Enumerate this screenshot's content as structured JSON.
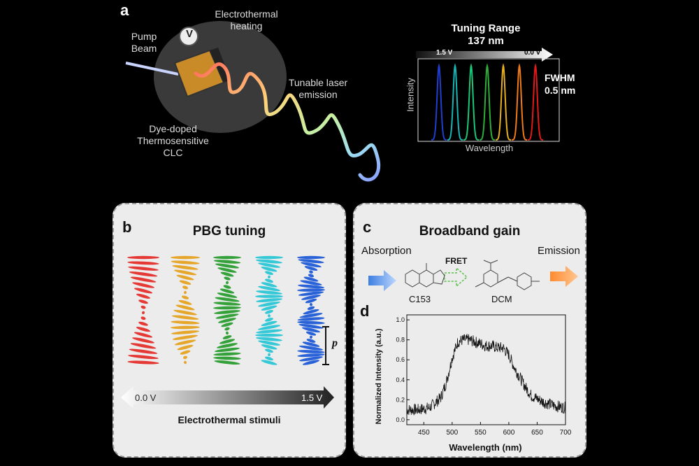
{
  "panel_a": {
    "label": "a",
    "pump_beam": [
      "Pump",
      "Beam"
    ],
    "heating": [
      "Electrothermal",
      "heating"
    ],
    "voltage_symbol": "V",
    "emission": [
      "Tunable laser",
      "emission"
    ],
    "clc": [
      "Dye-doped",
      "Thermosensitive",
      "CLC"
    ]
  },
  "spectrum": {
    "title": "Tuning Range",
    "range": "137 nm",
    "arrow_left": "1.5 V",
    "arrow_right": "0.0 V",
    "fwhm_label": "FWHM",
    "fwhm_value": "0.5 nm",
    "ylabel": "Intensity",
    "xlabel": "Wavelength",
    "peak_colors": [
      "#1f3fd0",
      "#17b6b6",
      "#19c979",
      "#2fae3a",
      "#e8b020",
      "#f07a1a",
      "#e21a1a"
    ]
  },
  "panel_b": {
    "label": "b",
    "title": "PBG tuning",
    "pitch_symbol": "p",
    "arrow_left": "0.0 V",
    "arrow_right": "1.5 V",
    "caption": "Electrothermal stimuli",
    "helix_colors": [
      "#e53935",
      "#e6a62a",
      "#34a13a",
      "#35c8d6",
      "#2a62d8"
    ]
  },
  "panel_c": {
    "label": "c",
    "title": "Broadband gain",
    "absorption": "Absorption",
    "emission": "Emission",
    "fret": "FRET",
    "donor": "C153",
    "acceptor": "DCM"
  },
  "panel_d": {
    "label": "d"
  },
  "chart_data": {
    "type": "line",
    "xlabel": "Wavelength (nm)",
    "ylabel": "Normalized Intensity (a.u.)",
    "xlim": [
      420,
      700
    ],
    "ylim": [
      -0.05,
      1.05
    ],
    "xticks": [
      450,
      500,
      550,
      600,
      650,
      700
    ],
    "yticks": [
      0.0,
      0.2,
      0.4,
      0.6,
      0.8,
      1.0
    ],
    "series": [
      {
        "x": [
          420,
          440,
          460,
          480,
          490,
          500,
          510,
          520,
          530,
          540,
          550,
          560,
          570,
          580,
          590,
          600,
          610,
          620,
          630,
          640,
          660,
          680,
          700
        ],
        "values": [
          0.1,
          0.1,
          0.12,
          0.22,
          0.38,
          0.62,
          0.78,
          0.8,
          0.8,
          0.78,
          0.76,
          0.74,
          0.74,
          0.72,
          0.72,
          0.65,
          0.52,
          0.42,
          0.32,
          0.24,
          0.18,
          0.14,
          0.12
        ]
      }
    ]
  }
}
